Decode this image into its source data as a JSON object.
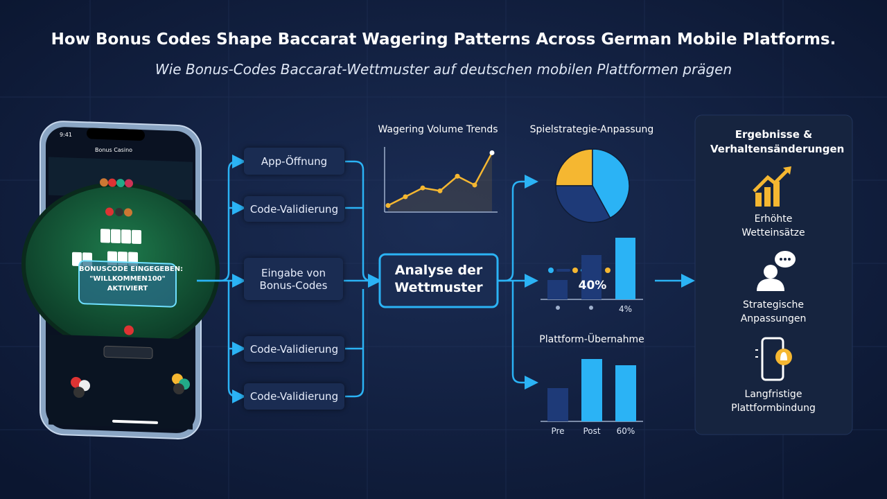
{
  "header": {
    "title": "How Bonus Codes Shape Baccarat Wagering Patterns Across German Mobile Platforms.",
    "subtitle": "Wie Bonus-Codes Baccarat-Wettmuster auf deutschen mobilen Plattformen prägen"
  },
  "phone": {
    "time": "9:41",
    "app_title": "Bonus Casino",
    "overlay": [
      "BONUSCODE EINGEGEBEN:",
      "\"WILLKOMMEN100\"",
      "AKTIVIERT"
    ]
  },
  "flow": {
    "steps": [
      "App-Öffnung",
      "Code-Validierung",
      "Eingabe von Bonus-Codes",
      "Code-Validierung",
      "Code-Validierung"
    ],
    "center": "Analyse der Wettmuster"
  },
  "charts": {
    "wagering": {
      "type": "line",
      "title": "Wagering Volume Trends",
      "values": [
        1,
        2.5,
        4,
        3.5,
        6,
        4.5,
        10
      ],
      "ylim": [
        0,
        11
      ],
      "color": "#f5b731"
    },
    "strategy": {
      "type": "pie",
      "title": "Spielstrategie-Anpassung",
      "values": [
        25,
        42,
        33
      ],
      "colors": [
        "#f5b731",
        "#2bb3f5",
        "#1e3a78"
      ]
    },
    "shift": {
      "type": "bar",
      "label": "40%",
      "categories": [
        null,
        null,
        "4%"
      ],
      "values": [
        28,
        64,
        89
      ],
      "ylim": [
        0,
        100
      ],
      "colors": [
        "#1e3a78",
        "#1e3a78",
        "#2bb3f5"
      ]
    },
    "adoption": {
      "type": "bar",
      "title": "Plattform-Übernahme",
      "categories": [
        "Pre",
        "Post",
        "60%"
      ],
      "values": [
        48,
        90,
        81
      ],
      "ylim": [
        0,
        100
      ],
      "colors": [
        "#1e3a78",
        "#2bb3f5",
        "#2bb3f5"
      ]
    }
  },
  "results": {
    "title": "Ergebnisse & Verhaltensänderungen",
    "items": [
      "Erhöhte Wetteinsätze",
      "Strategische Anpassungen",
      "Langfristige Plattformbindung"
    ]
  }
}
